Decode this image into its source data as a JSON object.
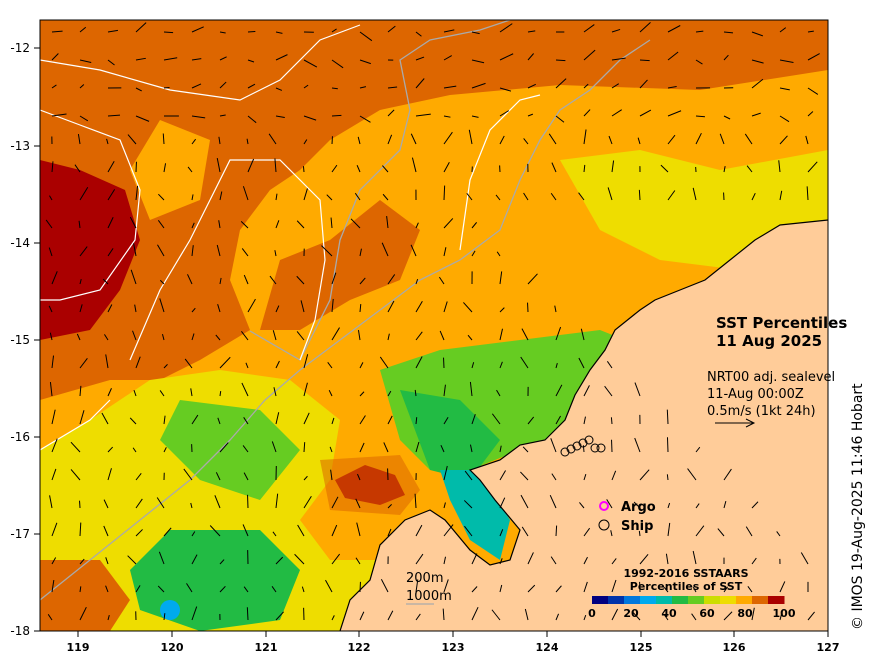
{
  "map": {
    "title_line1": "SST Percentiles",
    "title_line2": "11 Aug 2025",
    "current_info": {
      "line1": "NRT00 adj. sealevel",
      "line2": "11-Aug 00:00Z",
      "line3": "0.5m/s (1kt 24h)"
    },
    "depth_labels": {
      "shallow": "200m",
      "deep": "1000m"
    },
    "legend": {
      "argo": "Argo",
      "ship": "Ship",
      "argo_color": "#ff00ff",
      "ship_color": "#000000"
    },
    "colorbar": {
      "title_line1": "1992-2016 SSTAARS",
      "title_line2": "Percentiles of SST",
      "colors": [
        "#000080",
        "#0033aa",
        "#0077dd",
        "#00aaee",
        "#00bbaa",
        "#22bb44",
        "#66cc22",
        "#ccdd00",
        "#eedd00",
        "#ffaa00",
        "#dd6600",
        "#aa0000"
      ],
      "tick_labels": [
        "0",
        "20",
        "40",
        "60",
        "80",
        "100"
      ]
    },
    "credit": "© IMOS 19-Aug-2025 11:46 Hobart",
    "x_ticks": [
      "119",
      "120",
      "121",
      "122",
      "123",
      "124",
      "125",
      "126",
      "127"
    ],
    "y_ticks": [
      "-12",
      "-13",
      "-14",
      "-15",
      "-16",
      "-17",
      "-18"
    ],
    "land_color": "#ffcc99",
    "extent": {
      "lon": [
        118.6,
        127
      ],
      "lat": [
        -18,
        -11.75
      ]
    }
  }
}
